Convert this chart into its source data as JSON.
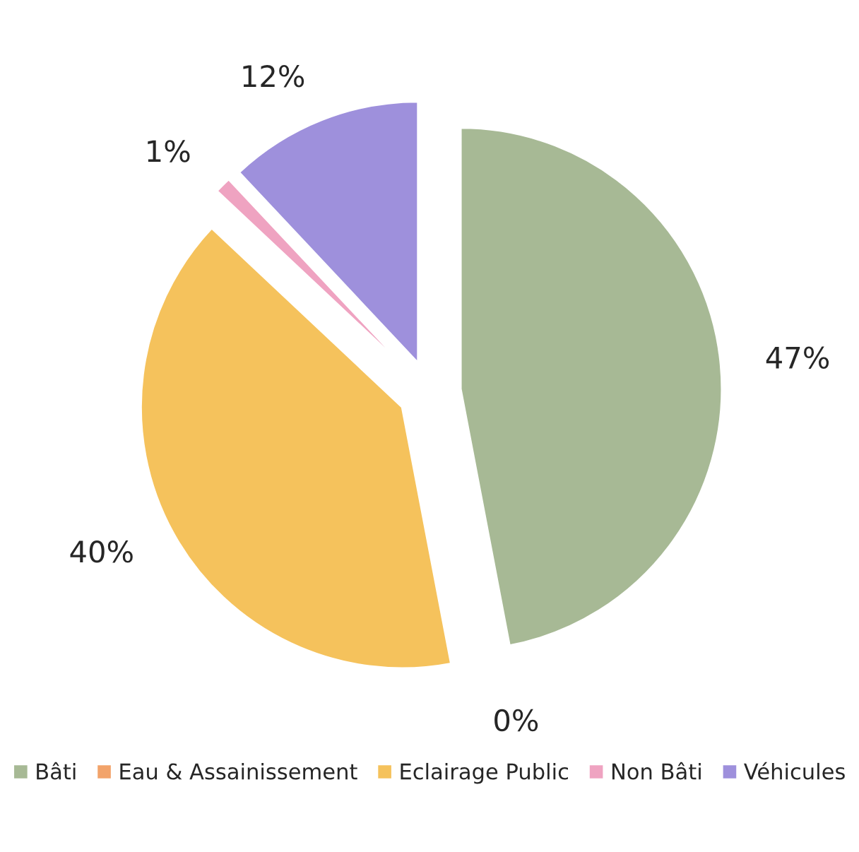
{
  "chart_data": {
    "type": "pie",
    "categories": [
      "Bâti",
      "Eau & Assainissement",
      "Eclairage Public",
      "Non Bâti",
      "Véhicules"
    ],
    "values": [
      47,
      0,
      40,
      1,
      12
    ],
    "value_labels": [
      "47%",
      "0%",
      "40%",
      "1%",
      "12%"
    ],
    "colors": [
      "#a7b995",
      "#f2a36a",
      "#f5c25c",
      "#efa3c1",
      "#9e90dc"
    ],
    "legend": "bottom"
  }
}
